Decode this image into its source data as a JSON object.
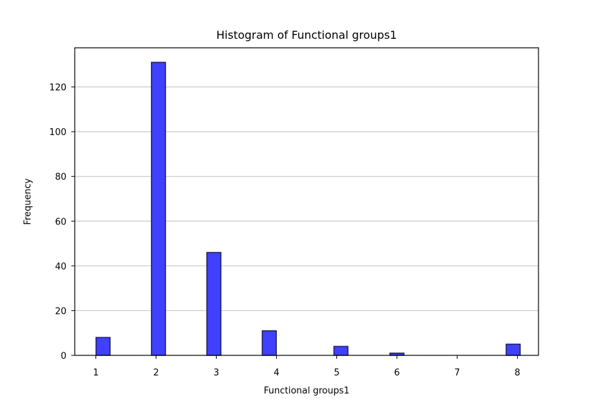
{
  "chart_data": {
    "type": "bar",
    "title": "Histogram of Functional groups1",
    "xlabel": "Functional groups1",
    "ylabel": "Frequency",
    "xlim": [
      0.65,
      8.35
    ],
    "ylim": [
      0,
      137.5
    ],
    "xticks": [
      1,
      2,
      3,
      4,
      5,
      6,
      7,
      8
    ],
    "yticks": [
      0,
      20,
      40,
      60,
      80,
      100,
      120
    ],
    "bin_width": 0.233,
    "bar_color": "#4040FF",
    "bar_edge_color": "#1a1a4d",
    "grid": "horizontal",
    "bins": [
      {
        "x": 1.12,
        "value": 8
      },
      {
        "x": 2.04,
        "value": 131
      },
      {
        "x": 2.96,
        "value": 46
      },
      {
        "x": 3.88,
        "value": 11
      },
      {
        "x": 5.07,
        "value": 4
      },
      {
        "x": 6.0,
        "value": 1
      },
      {
        "x": 7.93,
        "value": 5
      }
    ]
  }
}
